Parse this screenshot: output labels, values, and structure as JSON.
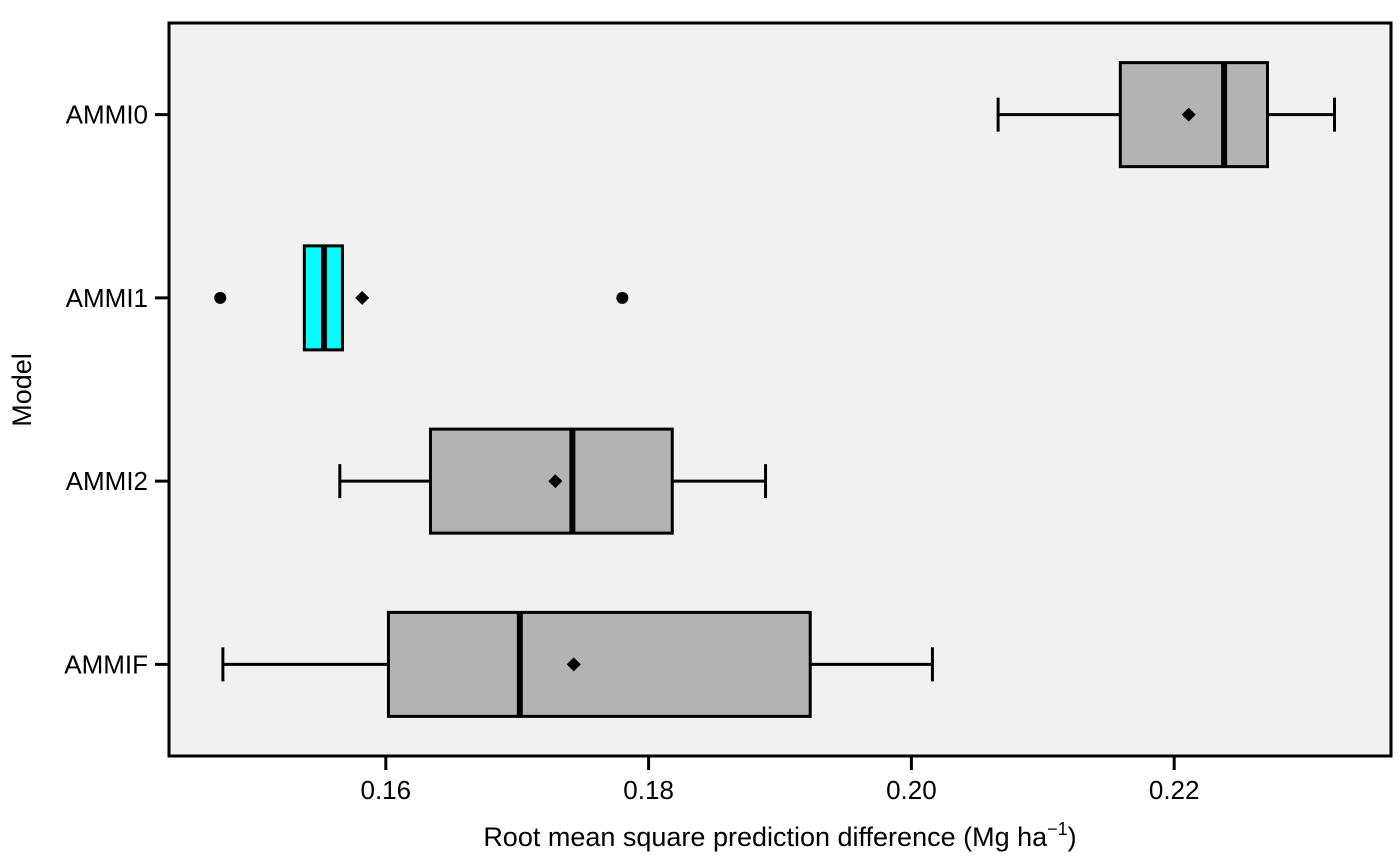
{
  "chart_data": {
    "type": "boxplot",
    "orientation": "horizontal",
    "xlabel": "Root mean square prediction difference (Mg ha",
    "xlabel_sup": "−1",
    "xlabel_close": ")",
    "ylabel": "Model",
    "xlim": [
      0.1435,
      0.2365
    ],
    "xticks": [
      0.16,
      0.18,
      0.2,
      0.22
    ],
    "xtick_labels": [
      "0.16",
      "0.18",
      "0.20",
      "0.22"
    ],
    "categories": [
      "AMMI0",
      "AMMI1",
      "AMMI2",
      "AMMIF"
    ],
    "boxes": [
      {
        "name": "AMMI0",
        "whisker_low": 0.2066,
        "q1": 0.2159,
        "median": 0.2238,
        "q3": 0.2271,
        "whisker_high": 0.2322,
        "mean": 0.2211,
        "outliers": [],
        "color": "#b3b3b3"
      },
      {
        "name": "AMMI1",
        "whisker_low": 0.1538,
        "q1": 0.1538,
        "median": 0.1553,
        "q3": 0.1567,
        "whisker_high": 0.1567,
        "mean": 0.1582,
        "outliers": [
          0.1474,
          0.178
        ],
        "color": "#00ffff"
      },
      {
        "name": "AMMI2",
        "whisker_low": 0.1565,
        "q1": 0.1634,
        "median": 0.1742,
        "q3": 0.1818,
        "whisker_high": 0.1889,
        "mean": 0.1729,
        "outliers": [],
        "color": "#b3b3b3"
      },
      {
        "name": "AMMIF",
        "whisker_low": 0.1476,
        "q1": 0.1602,
        "median": 0.1702,
        "q3": 0.1923,
        "whisker_high": 0.2016,
        "mean": 0.1743,
        "outliers": [],
        "color": "#b3b3b3"
      }
    ],
    "panel_background": "#f1f1f1",
    "grid": false,
    "legend": "none"
  }
}
